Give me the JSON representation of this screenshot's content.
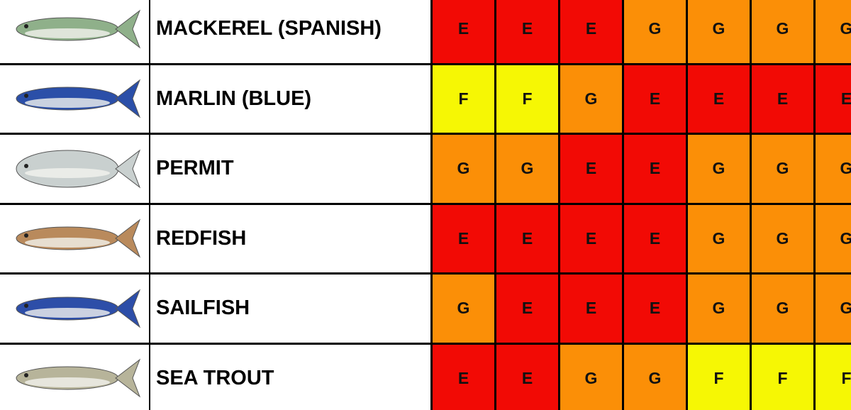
{
  "table": {
    "rating_colors": {
      "E": "#f20a05",
      "G": "#fb8f07",
      "F": "#f6f704"
    },
    "rows": [
      {
        "name": "MACKEREL (SPANISH)",
        "ratings": [
          "E",
          "E",
          "E",
          "G",
          "G",
          "G",
          "G"
        ]
      },
      {
        "name": "MARLIN (BLUE)",
        "ratings": [
          "F",
          "F",
          "G",
          "E",
          "E",
          "E",
          "E"
        ]
      },
      {
        "name": "PERMIT",
        "ratings": [
          "G",
          "G",
          "E",
          "E",
          "G",
          "G",
          "G"
        ]
      },
      {
        "name": "REDFISH",
        "ratings": [
          "E",
          "E",
          "E",
          "E",
          "G",
          "G",
          "G"
        ]
      },
      {
        "name": "SAILFISH",
        "ratings": [
          "G",
          "E",
          "E",
          "E",
          "G",
          "G",
          "G"
        ]
      },
      {
        "name": "SEA TROUT",
        "ratings": [
          "E",
          "E",
          "G",
          "G",
          "F",
          "F",
          "F"
        ]
      }
    ]
  }
}
